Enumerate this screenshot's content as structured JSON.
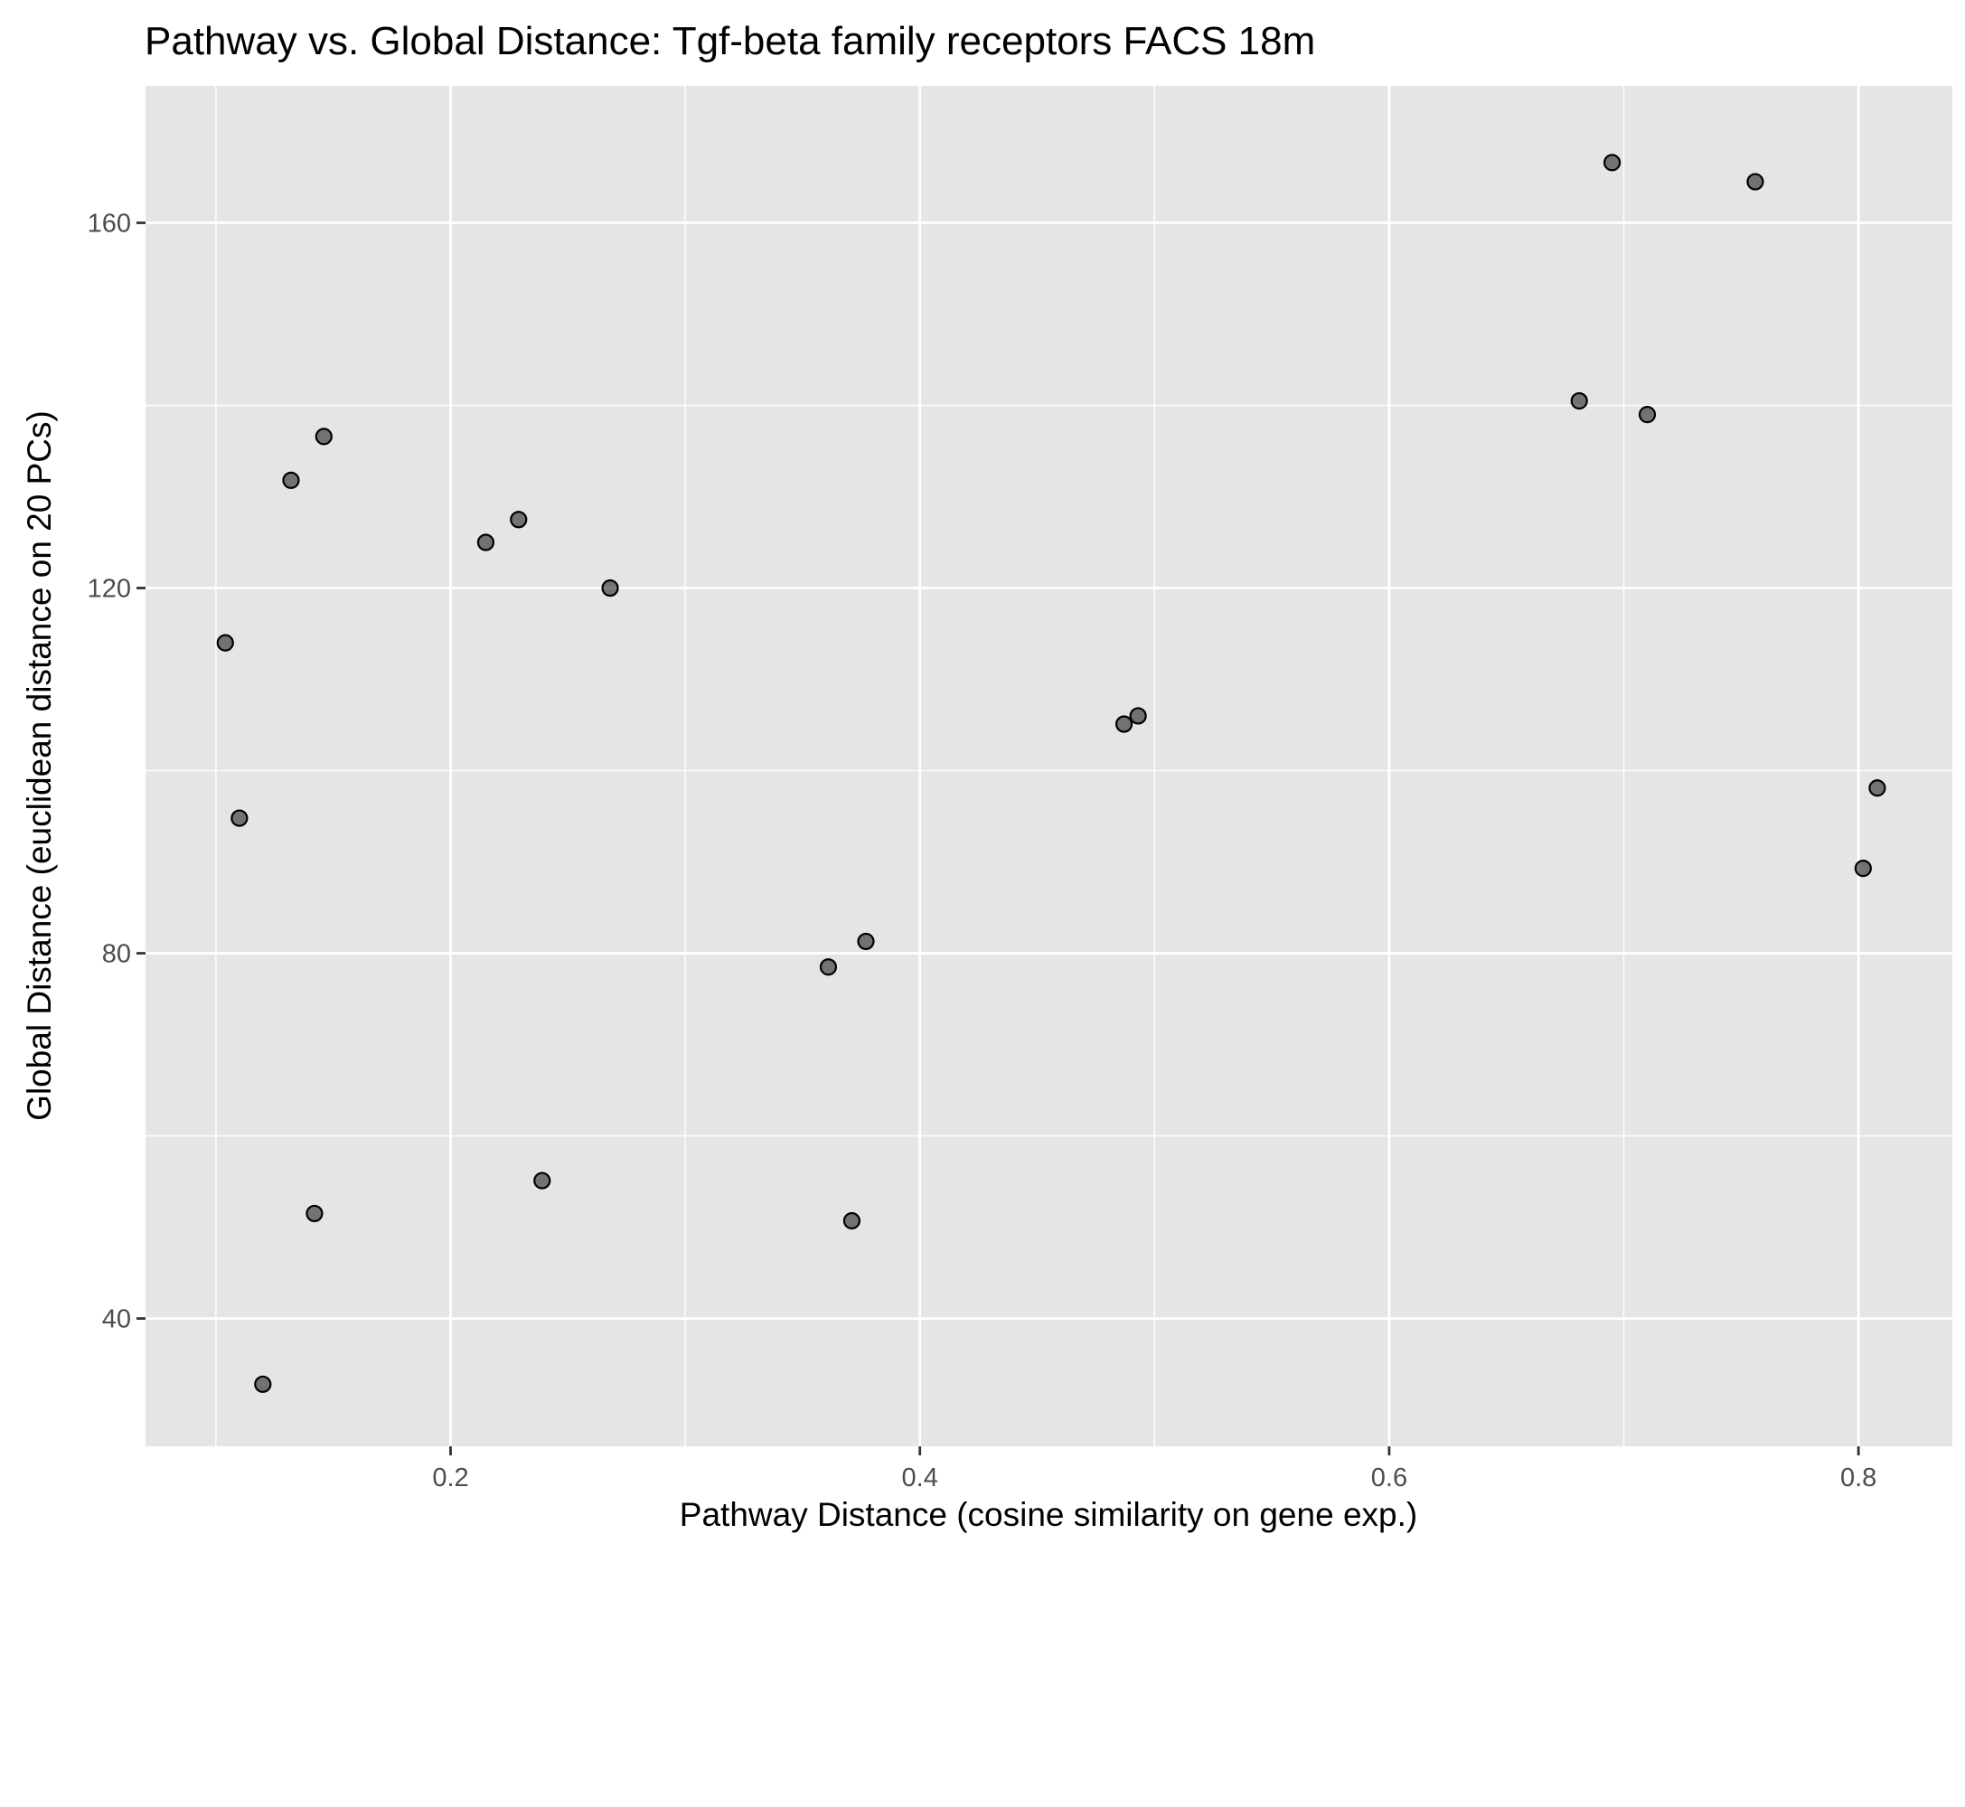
{
  "chart_data": {
    "type": "scatter",
    "title": "Pathway vs. Global Distance: Tgf-beta family receptors FACS 18m",
    "xlabel": "Pathway Distance (cosine similarity on gene exp.)",
    "ylabel": "Global Distance (euclidean distance on 20 PCs)",
    "xlim": [
      0.07,
      0.84
    ],
    "ylim": [
      26,
      175
    ],
    "x_ticks": [
      0.2,
      0.4,
      0.6,
      0.8
    ],
    "x_tick_labels": [
      "0.2",
      "0.4",
      "0.6",
      "0.8"
    ],
    "y_ticks": [
      40,
      80,
      120,
      160
    ],
    "y_tick_labels": [
      "40",
      "80",
      "120",
      "160"
    ],
    "x_minor_ticks": [
      0.1,
      0.3,
      0.5,
      0.7
    ],
    "y_minor_ticks": [
      60,
      100,
      140
    ],
    "grid": true,
    "colors": {
      "panel": "#e5e5e5",
      "grid": "#ffffff",
      "point_fill": "#000000",
      "point_alpha": 0.5
    },
    "points": [
      {
        "x": 0.104,
        "y": 114.0
      },
      {
        "x": 0.11,
        "y": 94.8
      },
      {
        "x": 0.12,
        "y": 32.8
      },
      {
        "x": 0.132,
        "y": 131.8
      },
      {
        "x": 0.142,
        "y": 51.5
      },
      {
        "x": 0.146,
        "y": 136.6
      },
      {
        "x": 0.215,
        "y": 125.0
      },
      {
        "x": 0.229,
        "y": 127.5
      },
      {
        "x": 0.239,
        "y": 55.1
      },
      {
        "x": 0.268,
        "y": 120.0
      },
      {
        "x": 0.361,
        "y": 78.5
      },
      {
        "x": 0.371,
        "y": 50.7
      },
      {
        "x": 0.377,
        "y": 81.3
      },
      {
        "x": 0.487,
        "y": 105.1
      },
      {
        "x": 0.493,
        "y": 106.0
      },
      {
        "x": 0.681,
        "y": 140.5
      },
      {
        "x": 0.695,
        "y": 166.6
      },
      {
        "x": 0.71,
        "y": 139.0
      },
      {
        "x": 0.756,
        "y": 164.5
      },
      {
        "x": 0.802,
        "y": 89.3
      },
      {
        "x": 0.808,
        "y": 98.1
      }
    ]
  }
}
